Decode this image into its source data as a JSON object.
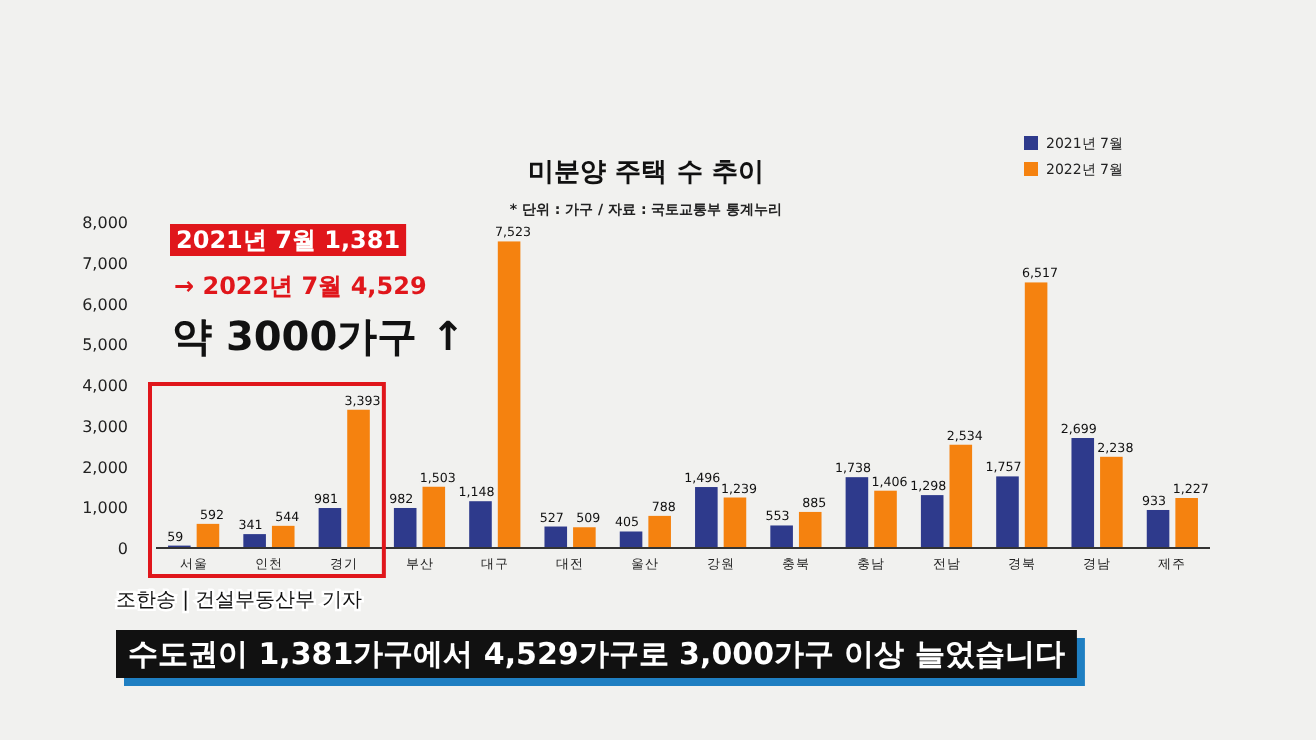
{
  "chart_data": {
    "type": "bar",
    "title": "미분양 주택 수 추이",
    "subtitle": "* 단위 : 가구 / 자료 : 국토교통부 통계누리",
    "categories": [
      "서울",
      "인천",
      "경기",
      "부산",
      "대구",
      "대전",
      "울산",
      "강원",
      "충북",
      "충남",
      "전남",
      "경북",
      "경남",
      "제주"
    ],
    "series": [
      {
        "name": "2021년 7월",
        "color": "#2e3a8c",
        "values": [
          59,
          341,
          981,
          982,
          1148,
          527,
          405,
          1496,
          553,
          1738,
          1298,
          1757,
          2699,
          933
        ],
        "value_labels": [
          "59",
          "341",
          "981",
          "982",
          "1,148",
          "527",
          "405",
          "1,496",
          "553",
          "1,738",
          "1,298",
          "1,757",
          "2,699",
          "933"
        ]
      },
      {
        "name": "2022년 7월",
        "color": "#f5820f",
        "values": [
          592,
          544,
          3393,
          1503,
          7523,
          509,
          788,
          1239,
          885,
          1406,
          2534,
          6517,
          2238,
          1227
        ],
        "value_labels": [
          "592",
          "544",
          "3,393",
          "1,503",
          "7,523",
          "509",
          "788",
          "1,239",
          "885",
          "1,406",
          "2,534",
          "6,517",
          "2,238",
          "1,227"
        ]
      }
    ],
    "ylim": [
      0,
      8000
    ],
    "yticks": [
      0,
      {
        "value": 1000,
        "label": "1,000"
      },
      {
        "value": 2000,
        "label": "2,000"
      },
      {
        "value": 3000,
        "label": "3,000"
      },
      {
        "value": 4000,
        "label": "4,000"
      },
      {
        "value": 5000,
        "label": "5,000"
      },
      {
        "value": 6000,
        "label": "6,000"
      },
      {
        "value": 7000,
        "label": "7,000"
      },
      {
        "value": 8000,
        "label": "8,000"
      }
    ],
    "legend": "top right",
    "annotations": [
      "2021년 7월 1,381",
      "→ 2022년 7월 4,529",
      "약 3000가구 ↑",
      "조한송 | 건설부동산부 기자",
      "수도권이 1,381가구에서 4,529가구로 3,000가구 이상 늘었습니다"
    ]
  }
}
